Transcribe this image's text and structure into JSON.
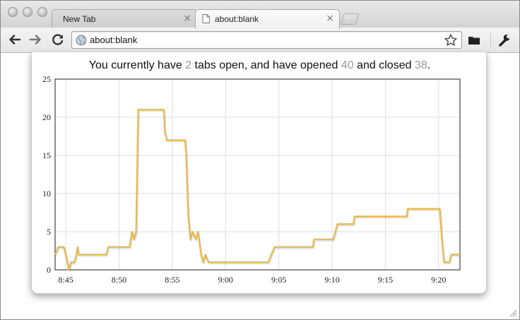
{
  "tabs": [
    {
      "label": "New Tab",
      "close": "×"
    },
    {
      "label": "about:blank",
      "close": "×"
    }
  ],
  "omnibox": {
    "url": "about:blank"
  },
  "stats": {
    "prefix": "You currently have",
    "open": "2",
    "middle": "tabs open, and have opened",
    "opened": "40",
    "between": "and closed",
    "closed": "38",
    "suffix": "."
  },
  "colors": {
    "line": "#e8b84a",
    "accent_numbers": "#999999"
  },
  "icons": [
    "back-icon",
    "forward-icon",
    "reload-icon",
    "globe-icon",
    "star-icon",
    "extension-icon",
    "wrench-icon"
  ],
  "chart_data": {
    "type": "line",
    "title": "",
    "xlabel": "",
    "ylabel": "",
    "xlim": [
      "8:44",
      "9:22"
    ],
    "ylim": [
      0,
      25
    ],
    "x_ticks": [
      "8:45",
      "8:50",
      "8:55",
      "9:00",
      "9:05",
      "9:10",
      "9:15",
      "9:20"
    ],
    "y_ticks": [
      "0",
      "5",
      "10",
      "15",
      "20",
      "25"
    ],
    "grid": true,
    "legend": "none",
    "series": [
      {
        "points": [
          [
            "8:44",
            2
          ],
          [
            "8:44.3",
            3
          ],
          [
            "8:44.8",
            3
          ],
          [
            "8:45",
            2
          ],
          [
            "8:45.3",
            0
          ],
          [
            "8:45.5",
            1
          ],
          [
            "8:45.8",
            1
          ],
          [
            "8:46",
            2
          ],
          [
            "8:46.1",
            3
          ],
          [
            "8:46.2",
            2
          ],
          [
            "8:48.8",
            2
          ],
          [
            "8:49",
            3
          ],
          [
            "8:51",
            3
          ],
          [
            "8:51.2",
            5
          ],
          [
            "8:51.4",
            4
          ],
          [
            "8:51.6",
            5
          ],
          [
            "8:51.8",
            21
          ],
          [
            "8:54.2",
            21
          ],
          [
            "8:54.3",
            18
          ],
          [
            "8:54.5",
            17
          ],
          [
            "8:56.2",
            17
          ],
          [
            "8:56.3",
            15
          ],
          [
            "8:56.5",
            7
          ],
          [
            "8:56.7",
            4
          ],
          [
            "8:56.9",
            5
          ],
          [
            "8:57.2",
            4
          ],
          [
            "8:57.4",
            5
          ],
          [
            "8:57.7",
            2
          ],
          [
            "8:57.9",
            1
          ],
          [
            "8:58.1",
            2
          ],
          [
            "8:58.4",
            1
          ],
          [
            "9:04",
            1
          ],
          [
            "9:04.3",
            2
          ],
          [
            "9:04.6",
            3
          ],
          [
            "9:08.2",
            3
          ],
          [
            "9:08.3",
            4
          ],
          [
            "9:10.1",
            4
          ],
          [
            "9:10.3",
            5
          ],
          [
            "9:10.5",
            6
          ],
          [
            "9:12",
            6
          ],
          [
            "9:12.1",
            7
          ],
          [
            "9:17",
            7
          ],
          [
            "9:17.1",
            8
          ],
          [
            "9:20.1",
            8
          ],
          [
            "9:20.3",
            4
          ],
          [
            "9:20.5",
            1
          ],
          [
            "9:21",
            1
          ],
          [
            "9:21.2",
            2
          ],
          [
            "9:22",
            2
          ]
        ]
      }
    ]
  }
}
